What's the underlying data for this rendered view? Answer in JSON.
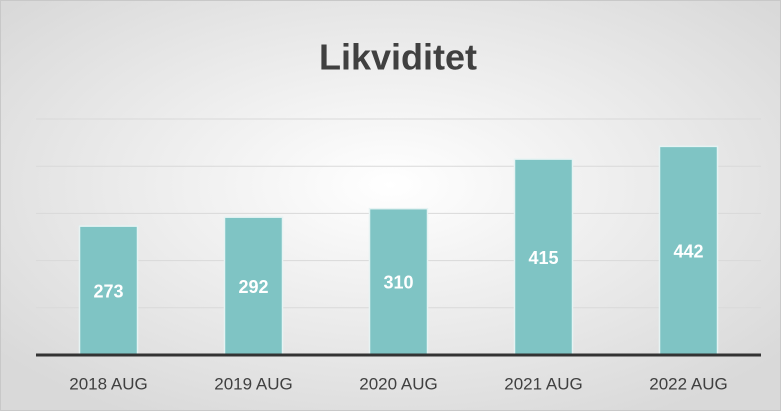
{
  "chart_data": {
    "type": "bar",
    "title": "Likviditet",
    "categories": [
      "2018 AUG",
      "2019 AUG",
      "2020 AUG",
      "2021 AUG",
      "2022 AUG"
    ],
    "values": [
      273,
      292,
      310,
      415,
      442
    ],
    "color": "#7fc4c4",
    "ylim": [
      0,
      500
    ],
    "yticks": [
      0,
      100,
      200,
      300,
      400,
      500
    ],
    "grid": true
  }
}
